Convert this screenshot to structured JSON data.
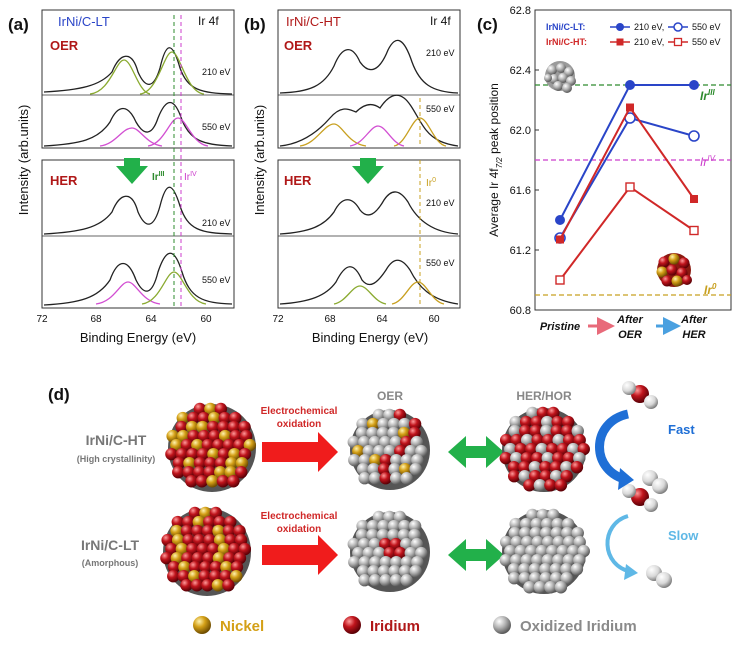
{
  "panels": {
    "a": {
      "letter": "(a)",
      "title_prefix": "IrNi",
      "title_suffix": "/C-LT",
      "orbital": "Ir 4f",
      "oer_label": "OER",
      "her_label": "HER",
      "spectra_labels": [
        "210 eV",
        "550 eV",
        "210 eV",
        "550 eV"
      ],
      "marker_iii": "Ir",
      "marker_iii_sup": "III",
      "marker_iv": "Ir",
      "marker_iv_sup": "IV",
      "ylabel": "Intensity (arb.units)",
      "xlabel": "Binding Energy (eV)",
      "xticks": [
        "72",
        "68",
        "64",
        "60"
      ]
    },
    "b": {
      "letter": "(b)",
      "title_prefix": "IrNi",
      "title_suffix": "/C-HT",
      "orbital": "Ir 4f",
      "oer_label": "OER",
      "her_label": "HER",
      "spectra_labels": [
        "210 eV",
        "550 eV",
        "210 eV",
        "550 eV"
      ],
      "marker_0": "Ir",
      "marker_0_sup": "0",
      "ylabel": "Intensity (arb.units)",
      "xlabel": "Binding Energy (eV)",
      "xticks": [
        "72",
        "68",
        "64",
        "60"
      ]
    },
    "c": {
      "letter": "(c)",
      "legend_lt": "IrNi/C-LT:",
      "legend_ht": "IrNi/C-HT:",
      "legend_210": "210 eV,",
      "legend_550": "550 eV",
      "ref_iii": "Ir",
      "ref_iii_sup": "III",
      "ref_iv": "Ir",
      "ref_iv_sup": "IV",
      "ref_0": "Ir",
      "ref_0_sup": "0",
      "ylabel": "Average Ir 4f",
      "ylabel_sub": "7/2",
      "ylabel_end": " peak position",
      "cat_lines": [
        [
          "Pristine"
        ],
        [
          "After",
          "OER"
        ],
        [
          "After",
          "HER"
        ]
      ]
    },
    "d": {
      "letter": "(d)",
      "ht_name": "IrNi/C-HT",
      "ht_desc": "(High crystallinity)",
      "lt_name": "IrNi/C-LT",
      "lt_desc": "(Amorphous)",
      "ec_line1": "Electrochemical",
      "ec_line2": "oxidation",
      "oer_title": "OER",
      "her_title": "HER/HOR",
      "fast": "Fast",
      "slow": "Slow",
      "legend_nickel": "Nickel",
      "legend_iridium": "Iridium",
      "legend_oxidized": "Oxidized Iridium"
    }
  },
  "chart_data": [
    {
      "type": "line",
      "panel": "c",
      "categories": [
        "Pristine",
        "After OER",
        "After HER"
      ],
      "ylim": [
        60.8,
        62.8
      ],
      "yticks": [
        60.8,
        61.2,
        61.6,
        62.0,
        62.4,
        62.8
      ],
      "reference_lines": [
        {
          "name": "Ir(III)",
          "value": 62.3,
          "color": "#2e8b2e"
        },
        {
          "name": "Ir(IV)",
          "value": 61.8,
          "color": "#cc3dcc"
        },
        {
          "name": "Ir(0)",
          "value": 60.9,
          "color": "#c8a020"
        }
      ],
      "series": [
        {
          "name": "IrNi/C-LT 210 eV",
          "color": "#2a45c8",
          "marker": "filled-circle",
          "values": [
            61.4,
            62.3,
            62.3
          ]
        },
        {
          "name": "IrNi/C-LT 550 eV",
          "color": "#2a45c8",
          "marker": "open-circle",
          "values": [
            61.28,
            62.08,
            61.96
          ]
        },
        {
          "name": "IrNi/C-HT 210 eV",
          "color": "#d02828",
          "marker": "filled-square",
          "values": [
            61.27,
            62.15,
            61.54
          ]
        },
        {
          "name": "IrNi/C-HT 550 eV",
          "color": "#d02828",
          "marker": "open-square",
          "values": [
            61.0,
            61.62,
            61.33
          ]
        }
      ]
    },
    {
      "type": "line",
      "panel": "a",
      "xlim": [
        72,
        58
      ],
      "x_values": [
        72,
        68,
        64,
        60
      ],
      "note_lines_at": [
        62.3,
        61.8
      ]
    },
    {
      "type": "line",
      "panel": "b",
      "xlim": [
        72,
        58
      ],
      "x_values": [
        72,
        68,
        64,
        60
      ],
      "note_lines_at": [
        60.9
      ]
    }
  ],
  "colors": {
    "blue": "#2a45c8",
    "red": "#d02828",
    "darkred": "#b01818",
    "green": "#2e8b2e",
    "magenta": "#cc3dcc",
    "gold": "#c8a020",
    "nickel": "#d4a017",
    "iridium": "#c0141c",
    "oxidized": "#a8a8a8",
    "arrow_green": "#22b04a",
    "fast_blue": "#1f6fd6",
    "slow_blue": "#5fb8e6"
  }
}
